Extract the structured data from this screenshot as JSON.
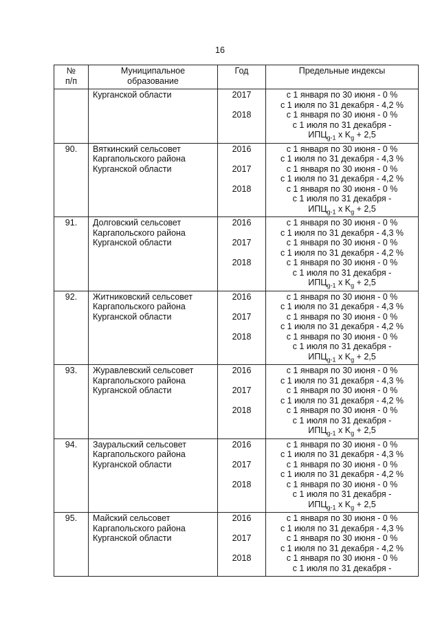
{
  "header": {
    "page_number": "16"
  },
  "table": {
    "columns": [
      [
        "№",
        "п/п"
      ],
      [
        "Муниципальное",
        "образование"
      ],
      [
        "Год"
      ],
      [
        "Предельные индексы"
      ]
    ],
    "rows": [
      {
        "name": [
          "Курганской области"
        ],
        "years": [
          {
            "year": "2017",
            "lines": [
              "с 1 января по 30 июня - 0 %",
              "с 1 июля по 31 декабря - 4,2 %"
            ]
          },
          {
            "year": "2018",
            "lines": [
              "с 1 января по 30 июня - 0 %",
              "с 1 июля по 31 декабря -"
            ],
            "formula": [
              "ИПЦ",
              "g-1",
              " x K",
              "g",
              " + 2,5"
            ]
          }
        ]
      },
      {
        "number": "90.",
        "name": [
          "Вяткинский сельсовет",
          "Каргапольского района",
          "Курганской области"
        ],
        "years": [
          {
            "year": "2016",
            "lines": [
              "с 1 января по 30 июня - 0 %",
              "с 1 июля по 31 декабря - 4,3 %"
            ]
          },
          {
            "year": "2017",
            "lines": [
              "с 1 января по 30 июня - 0 %",
              "с 1 июля по 31 декабря - 4,2 %"
            ]
          },
          {
            "year": "2018",
            "lines": [
              "с 1 января по 30 июня - 0 %",
              "с 1 июля по 31 декабря -"
            ],
            "formula": [
              "ИПЦ",
              "g-1",
              " x K",
              "g",
              " + 2,5"
            ]
          }
        ]
      },
      {
        "number": "91.",
        "name": [
          "Долговский сельсовет",
          "Каргапольского района",
          "Курганской области"
        ],
        "years": [
          {
            "year": "2016",
            "lines": [
              "с 1 января по 30 июня - 0 %",
              "с 1 июля по 31 декабря - 4,3 %"
            ]
          },
          {
            "year": "2017",
            "lines": [
              "с 1 января по 30 июня - 0 %",
              "с 1 июля по 31 декабря - 4,2 %"
            ]
          },
          {
            "year": "2018",
            "lines": [
              "с 1 января по 30 июня - 0 %",
              "с 1 июля по 31 декабря -"
            ],
            "formula": [
              "ИПЦ",
              "g-1",
              " x K",
              "g",
              " + 2,5"
            ]
          }
        ]
      },
      {
        "number": "92.",
        "name": [
          "Житниковский сельсовет",
          "Каргапольского района",
          "Курганской области"
        ],
        "years": [
          {
            "year": "2016",
            "lines": [
              "с 1 января по 30 июня - 0 %",
              "с 1 июля по 31 декабря - 4,3 %"
            ]
          },
          {
            "year": "2017",
            "lines": [
              "с 1 января по 30 июня - 0 %",
              "с 1 июля по 31 декабря - 4,2 %"
            ]
          },
          {
            "year": "2018",
            "lines": [
              "с 1 января по 30 июня - 0 %",
              "с 1 июля по 31 декабря -"
            ],
            "formula": [
              "ИПЦ",
              "g-1",
              " x K",
              "g",
              " + 2,5"
            ]
          }
        ]
      },
      {
        "number": "93.",
        "name": [
          "Журавлевский сельсовет",
          "Каргапольского района",
          "Курганской области"
        ],
        "years": [
          {
            "year": "2016",
            "lines": [
              "с 1 января по 30 июня - 0 %",
              "с 1 июля по 31 декабря - 4,3 %"
            ]
          },
          {
            "year": "2017",
            "lines": [
              "с 1 января по 30 июня - 0 %",
              "с 1 июля по 31 декабря - 4,2 %"
            ]
          },
          {
            "year": "2018",
            "lines": [
              "с 1 января по 30 июня - 0 %",
              "с 1 июля по 31 декабря -"
            ],
            "formula": [
              "ИПЦ",
              "g-1",
              " x K",
              "g",
              " + 2,5"
            ]
          }
        ]
      },
      {
        "number": "94.",
        "name": [
          "Зауральский сельсовет",
          "Каргапольского района",
          "Курганской области"
        ],
        "years": [
          {
            "year": "2016",
            "lines": [
              "с 1 января по 30 июня - 0 %",
              "с 1 июля по 31 декабря - 4,3 %"
            ]
          },
          {
            "year": "2017",
            "lines": [
              "с 1 января по 30 июня - 0 %",
              "с 1 июля по 31 декабря - 4,2 %"
            ]
          },
          {
            "year": "2018",
            "lines": [
              "с 1 января по 30 июня - 0 %",
              "с 1 июля по 31 декабря -"
            ],
            "formula": [
              "ИПЦ",
              "g-1",
              " x K",
              "g",
              " + 2,5"
            ]
          }
        ]
      },
      {
        "number": "95.",
        "name": [
          "Майский сельсовет",
          "Каргапольского района",
          "Курганской области"
        ],
        "years": [
          {
            "year": "2016",
            "lines": [
              "с 1 января по 30 июня - 0 %",
              "с 1 июля по 31 декабря - 4,3 %"
            ]
          },
          {
            "year": "2017",
            "lines": [
              "с 1 января по 30 июня - 0 %",
              "с 1 июля по 31 декабря - 4,2 %"
            ]
          },
          {
            "year": "2018",
            "lines": [
              "с 1 января по 30 июня - 0 %",
              "с 1 июля по 31 декабря -"
            ]
          }
        ]
      }
    ]
  }
}
